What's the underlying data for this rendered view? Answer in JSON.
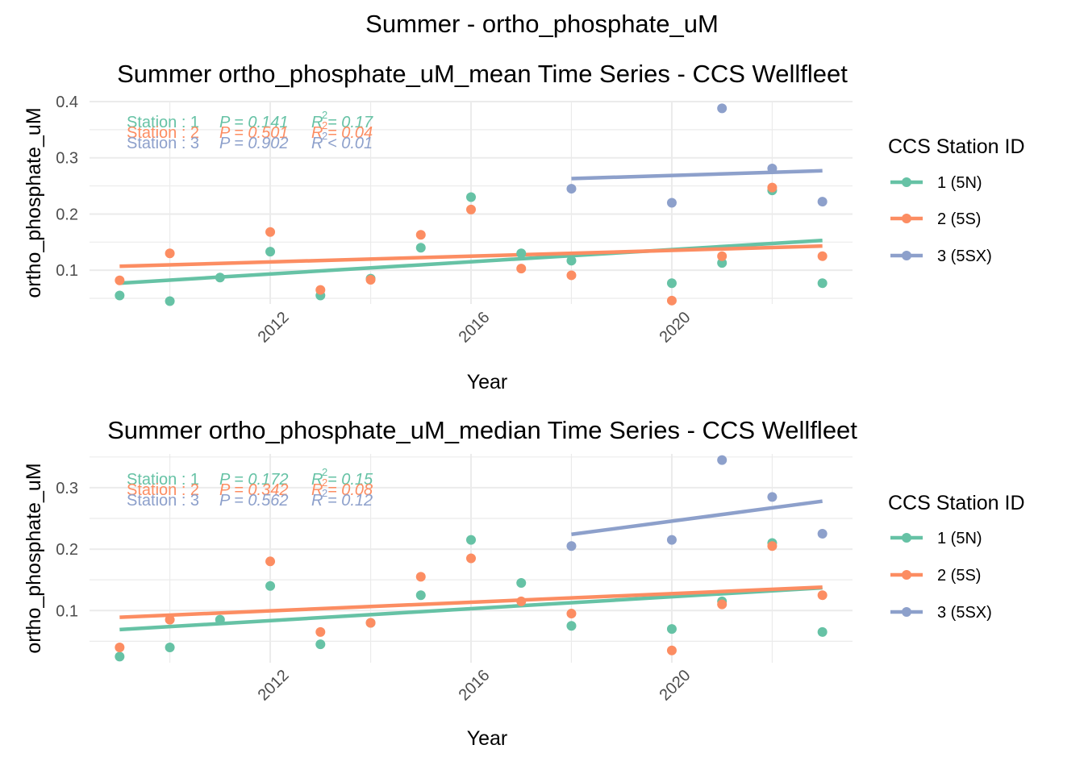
{
  "suptitle": "Summer - ortho_phosphate_uM",
  "colors": {
    "s1": "#66c2a5",
    "s2": "#fc8d62",
    "s3": "#8da0cb",
    "grid": "#ebebeb"
  },
  "legend": {
    "title": "CCS Station ID",
    "items": [
      "1 (5N)",
      "2 (5S)",
      "3 (5SX)"
    ]
  },
  "chart_data": [
    {
      "type": "scatter",
      "title": "Summer ortho_phosphate_uM_mean Time Series - CCS Wellfleet",
      "xlabel": "Year",
      "ylabel": "ortho_phosphate_uM",
      "xlim": [
        2008.4,
        2023.6
      ],
      "ylim": [
        0.04,
        0.4
      ],
      "xticks": [
        2012,
        2016,
        2020
      ],
      "yticks": [
        0.1,
        0.2,
        0.3,
        0.4
      ],
      "series": [
        {
          "name": "1 (5N)",
          "x": [
            2009,
            2010,
            2011,
            2012,
            2013,
            2014,
            2015,
            2016,
            2017,
            2018,
            2020,
            2021,
            2022,
            2023
          ],
          "y": [
            0.055,
            0.045,
            0.087,
            0.133,
            0.055,
            0.085,
            0.14,
            0.23,
            0.13,
            0.117,
            0.077,
            0.113,
            0.242,
            0.077
          ],
          "trend": [
            [
              2009,
              0.077
            ],
            [
              2023,
              0.153
            ]
          ]
        },
        {
          "name": "2 (5S)",
          "x": [
            2009,
            2010,
            2012,
            2013,
            2014,
            2015,
            2016,
            2017,
            2018,
            2020,
            2021,
            2022,
            2023
          ],
          "y": [
            0.082,
            0.13,
            0.168,
            0.065,
            0.083,
            0.163,
            0.208,
            0.103,
            0.091,
            0.046,
            0.125,
            0.247,
            0.125
          ],
          "trend": [
            [
              2009,
              0.107
            ],
            [
              2023,
              0.143
            ]
          ]
        },
        {
          "name": "3 (5SX)",
          "x": [
            2018,
            2020,
            2021,
            2022,
            2023
          ],
          "y": [
            0.245,
            0.22,
            0.388,
            0.281,
            0.222
          ],
          "trend": [
            [
              2018,
              0.263
            ],
            [
              2023,
              0.277
            ]
          ]
        }
      ],
      "annotations": [
        {
          "label": "Station : 1",
          "p": "P = 0.141",
          "r2": "R  = 0.17"
        },
        {
          "label": "Station : 2",
          "p": "P = 0.501",
          "r2": "R  = 0.04"
        },
        {
          "label": "Station : 3",
          "p": "P = 0.902",
          "r2": "R  < 0.01"
        }
      ]
    },
    {
      "type": "scatter",
      "title": "Summer ortho_phosphate_uM_median Time Series - CCS Wellfleet",
      "xlabel": "Year",
      "ylabel": "ortho_phosphate_uM",
      "xlim": [
        2008.4,
        2023.6
      ],
      "ylim": [
        0.015,
        0.355
      ],
      "xticks": [
        2012,
        2016,
        2020
      ],
      "yticks": [
        0.1,
        0.2,
        0.3
      ],
      "series": [
        {
          "name": "1 (5N)",
          "x": [
            2009,
            2010,
            2011,
            2012,
            2013,
            2014,
            2015,
            2016,
            2017,
            2018,
            2020,
            2021,
            2022,
            2023
          ],
          "y": [
            0.025,
            0.04,
            0.085,
            0.14,
            0.045,
            0.08,
            0.125,
            0.215,
            0.145,
            0.075,
            0.07,
            0.115,
            0.21,
            0.065
          ],
          "trend": [
            [
              2009,
              0.069
            ],
            [
              2023,
              0.137
            ]
          ]
        },
        {
          "name": "2 (5S)",
          "x": [
            2009,
            2010,
            2012,
            2013,
            2014,
            2015,
            2016,
            2017,
            2018,
            2020,
            2021,
            2022,
            2023
          ],
          "y": [
            0.04,
            0.085,
            0.18,
            0.065,
            0.08,
            0.155,
            0.185,
            0.115,
            0.095,
            0.035,
            0.11,
            0.205,
            0.125
          ],
          "trend": [
            [
              2009,
              0.089
            ],
            [
              2023,
              0.138
            ]
          ]
        },
        {
          "name": "3 (5SX)",
          "x": [
            2018,
            2020,
            2021,
            2022,
            2023
          ],
          "y": [
            0.205,
            0.215,
            0.345,
            0.285,
            0.225
          ],
          "trend": [
            [
              2018,
              0.224
            ],
            [
              2023,
              0.278
            ]
          ]
        }
      ],
      "annotations": [
        {
          "label": "Station : 1",
          "p": "P = 0.172",
          "r2": "R  = 0.15"
        },
        {
          "label": "Station : 2",
          "p": "P = 0.342",
          "r2": "R  = 0.08"
        },
        {
          "label": "Station : 3",
          "p": "P = 0.562",
          "r2": "R  = 0.12"
        }
      ]
    }
  ]
}
